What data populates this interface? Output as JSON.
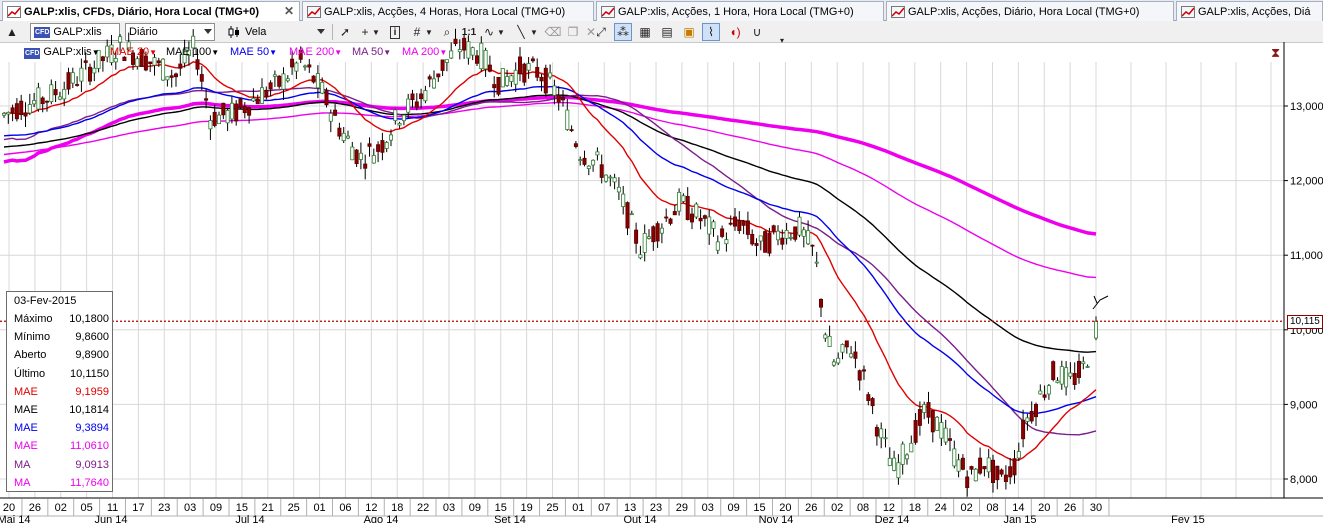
{
  "tabs": [
    {
      "label": "GALP:xlis, CFDs, Diário, Hora Local (TMG+0)",
      "active": true
    },
    {
      "label": "GALP:xlis, Acções, 4 Horas, Hora Local (TMG+0)",
      "active": false
    },
    {
      "label": "GALP:xlis, Acções, 1 Hora, Hora Local (TMG+0)",
      "active": false
    },
    {
      "label": "GALP:xlis, Acções, Diário, Hora Local (TMG+0)",
      "active": false
    },
    {
      "label": "GALP:xlis, Acções, Diá",
      "active": false
    }
  ],
  "toolbar": {
    "instrument": "GALP:xlis",
    "instrument_badge": "CFD",
    "timeframe": "Diário",
    "chart_style": "Vela",
    "zoom_label": "1:1"
  },
  "legend": [
    {
      "label": "GALP:xlis",
      "color": "#000000"
    },
    {
      "label": "MAE 20",
      "color": "#e00000"
    },
    {
      "label": "MAE 100",
      "color": "#000000"
    },
    {
      "label": "MAE 50",
      "color": "#0000ee"
    },
    {
      "label": "MAE 200",
      "color": "#ee00ee"
    },
    {
      "label": "MA 50",
      "color": "#7a1f8a"
    },
    {
      "label": "MA 200",
      "color": "#ee00ee"
    }
  ],
  "data_window": {
    "date": "03-Fev-2015",
    "rows": [
      {
        "k": "Máximo",
        "v": "10,1800",
        "color": "#000000"
      },
      {
        "k": "Mínimo",
        "v": "9,8600",
        "color": "#000000"
      },
      {
        "k": "Aberto",
        "v": "9,8900",
        "color": "#000000"
      },
      {
        "k": "Último",
        "v": "10,1150",
        "color": "#000000"
      },
      {
        "k": "MAE",
        "v": "9,1959",
        "color": "#e00000"
      },
      {
        "k": "MAE",
        "v": "10,1814",
        "color": "#000000"
      },
      {
        "k": "MAE",
        "v": "9,3894",
        "color": "#0000ee"
      },
      {
        "k": "MAE",
        "v": "11,0610",
        "color": "#ee00ee"
      },
      {
        "k": "MA",
        "v": "9,0913",
        "color": "#7a1f8a"
      },
      {
        "k": "MA",
        "v": "11,7640",
        "color": "#ee00ee"
      }
    ]
  },
  "current_price_label": "10,115",
  "chart_data": {
    "type": "candlestick",
    "y_axis": {
      "ticks": [
        "8,000",
        "9,000",
        "10,000",
        "11,000",
        "12,000",
        "13,000"
      ],
      "ylim": [
        7.8,
        13.9
      ]
    },
    "x_tick_labels": [
      "20",
      "26",
      "02",
      "05",
      "11",
      "17",
      "23",
      "03",
      "09",
      "15",
      "21",
      "25",
      "01",
      "06",
      "12",
      "18",
      "22",
      "03",
      "09",
      "15",
      "19",
      "25",
      "01",
      "07",
      "13",
      "23",
      "29",
      "03",
      "09",
      "15",
      "20",
      "26",
      "02",
      "08",
      "12",
      "18",
      "24",
      "02",
      "08",
      "14",
      "20",
      "26",
      "30"
    ],
    "month_labels": [
      "Mai 14",
      "Jun 14",
      "Jul 14",
      "Ago 14",
      "Set 14",
      "Out 14",
      "Nov 14",
      "Dez 14",
      "Jan 15",
      "Fev 15"
    ],
    "last_close": 10.115,
    "series": [
      {
        "name": "MAE 20",
        "color": "#e00000"
      },
      {
        "name": "MAE 100",
        "color": "#000000"
      },
      {
        "name": "MAE 50",
        "color": "#0000ee"
      },
      {
        "name": "MAE 200",
        "color": "#ee00ee"
      },
      {
        "name": "MA 50",
        "color": "#7a1f8a"
      },
      {
        "name": "MA 200",
        "color": "#ee00ee"
      }
    ],
    "grid": true
  }
}
